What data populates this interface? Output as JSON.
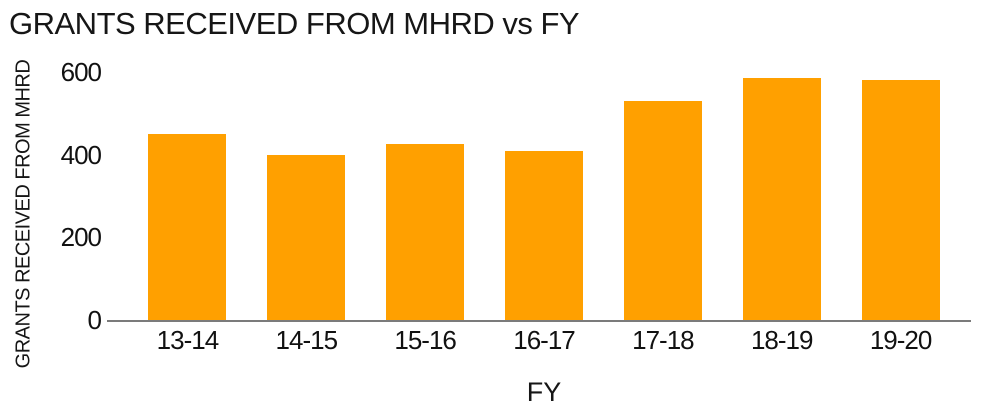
{
  "chart_data": {
    "type": "bar",
    "title": "GRANTS RECEIVED FROM MHRD vs FY",
    "xlabel": "FY",
    "ylabel": "GRANTS RECEIVED FROM MHRD",
    "categories": [
      "13-14",
      "14-15",
      "15-16",
      "16-17",
      "17-18",
      "18-19",
      "19-20"
    ],
    "values": [
      450,
      400,
      425,
      410,
      530,
      585,
      580
    ],
    "yticks": [
      0,
      200,
      400,
      600
    ],
    "ylim": [
      0,
      600
    ],
    "grid": false,
    "legend": false,
    "bar_color": "#FFA000",
    "axis_line_color": "#7b7b7b",
    "text_color": "#161616"
  }
}
